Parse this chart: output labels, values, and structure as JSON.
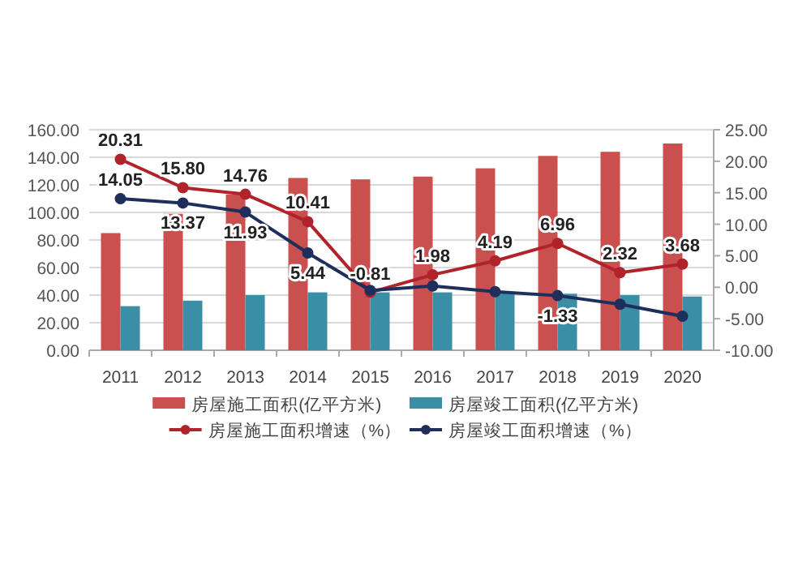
{
  "chart_data": {
    "type": "bar",
    "categories": [
      "2011",
      "2012",
      "2013",
      "2014",
      "2015",
      "2016",
      "2017",
      "2018",
      "2019",
      "2020"
    ],
    "series": [
      {
        "name": "房屋施工面积(亿平方米)",
        "color": "#c9504f",
        "values": [
          85,
          99,
          113,
          125,
          124,
          126,
          132,
          141,
          144,
          150
        ]
      },
      {
        "name": "房屋竣工面积(亿平方米)",
        "color": "#3a8ea5",
        "values": [
          32,
          36,
          40,
          42,
          42,
          42,
          42,
          41,
          40,
          39
        ]
      },
      {
        "name": "房屋施工面积增速（%）",
        "type": "line",
        "axis": "y2",
        "color": "#b0232a",
        "values": [
          20.31,
          15.8,
          14.76,
          10.41,
          -0.81,
          1.98,
          4.19,
          6.96,
          2.32,
          3.68
        ],
        "value_labels": [
          "20.31",
          "15.80",
          "14.76",
          "10.41",
          "-0.81",
          "1.98",
          "4.19",
          "6.96",
          "2.32",
          "3.68"
        ]
      },
      {
        "name": "房屋竣工面积增速（%）",
        "type": "line",
        "axis": "y2",
        "color": "#1f2f5c",
        "values": [
          14.05,
          13.37,
          11.93,
          5.44,
          -0.5,
          0.2,
          -0.7,
          -1.33,
          -2.7,
          -4.6
        ],
        "value_labels": [
          "14.05",
          "13.37",
          "11.93",
          "5.44",
          null,
          null,
          null,
          "-1.33",
          null,
          null
        ]
      }
    ],
    "ylim": [
      0,
      160
    ],
    "yticks": [
      {
        "value": 0,
        "label": "0.00"
      },
      {
        "value": 20,
        "label": "20.00"
      },
      {
        "value": 40,
        "label": "40.00"
      },
      {
        "value": 60,
        "label": "60.00"
      },
      {
        "value": 80,
        "label": "80.00"
      },
      {
        "value": 100,
        "label": "100.00"
      },
      {
        "value": 120,
        "label": "120.00"
      },
      {
        "value": 140,
        "label": "140.00"
      },
      {
        "value": 160,
        "label": "160.00"
      }
    ],
    "y2lim": [
      -10,
      25
    ],
    "y2ticks": [
      {
        "value": -10,
        "label": "-10.00"
      },
      {
        "value": -5,
        "label": "-5.00"
      },
      {
        "value": 0,
        "label": "0.00"
      },
      {
        "value": 5,
        "label": "5.00"
      },
      {
        "value": 10,
        "label": "10.00"
      },
      {
        "value": 15,
        "label": "15.00"
      },
      {
        "value": 20,
        "label": "20.00"
      },
      {
        "value": 25,
        "label": "25.00"
      }
    ],
    "grid": "y",
    "legend": "bottom",
    "marker": "circle"
  }
}
